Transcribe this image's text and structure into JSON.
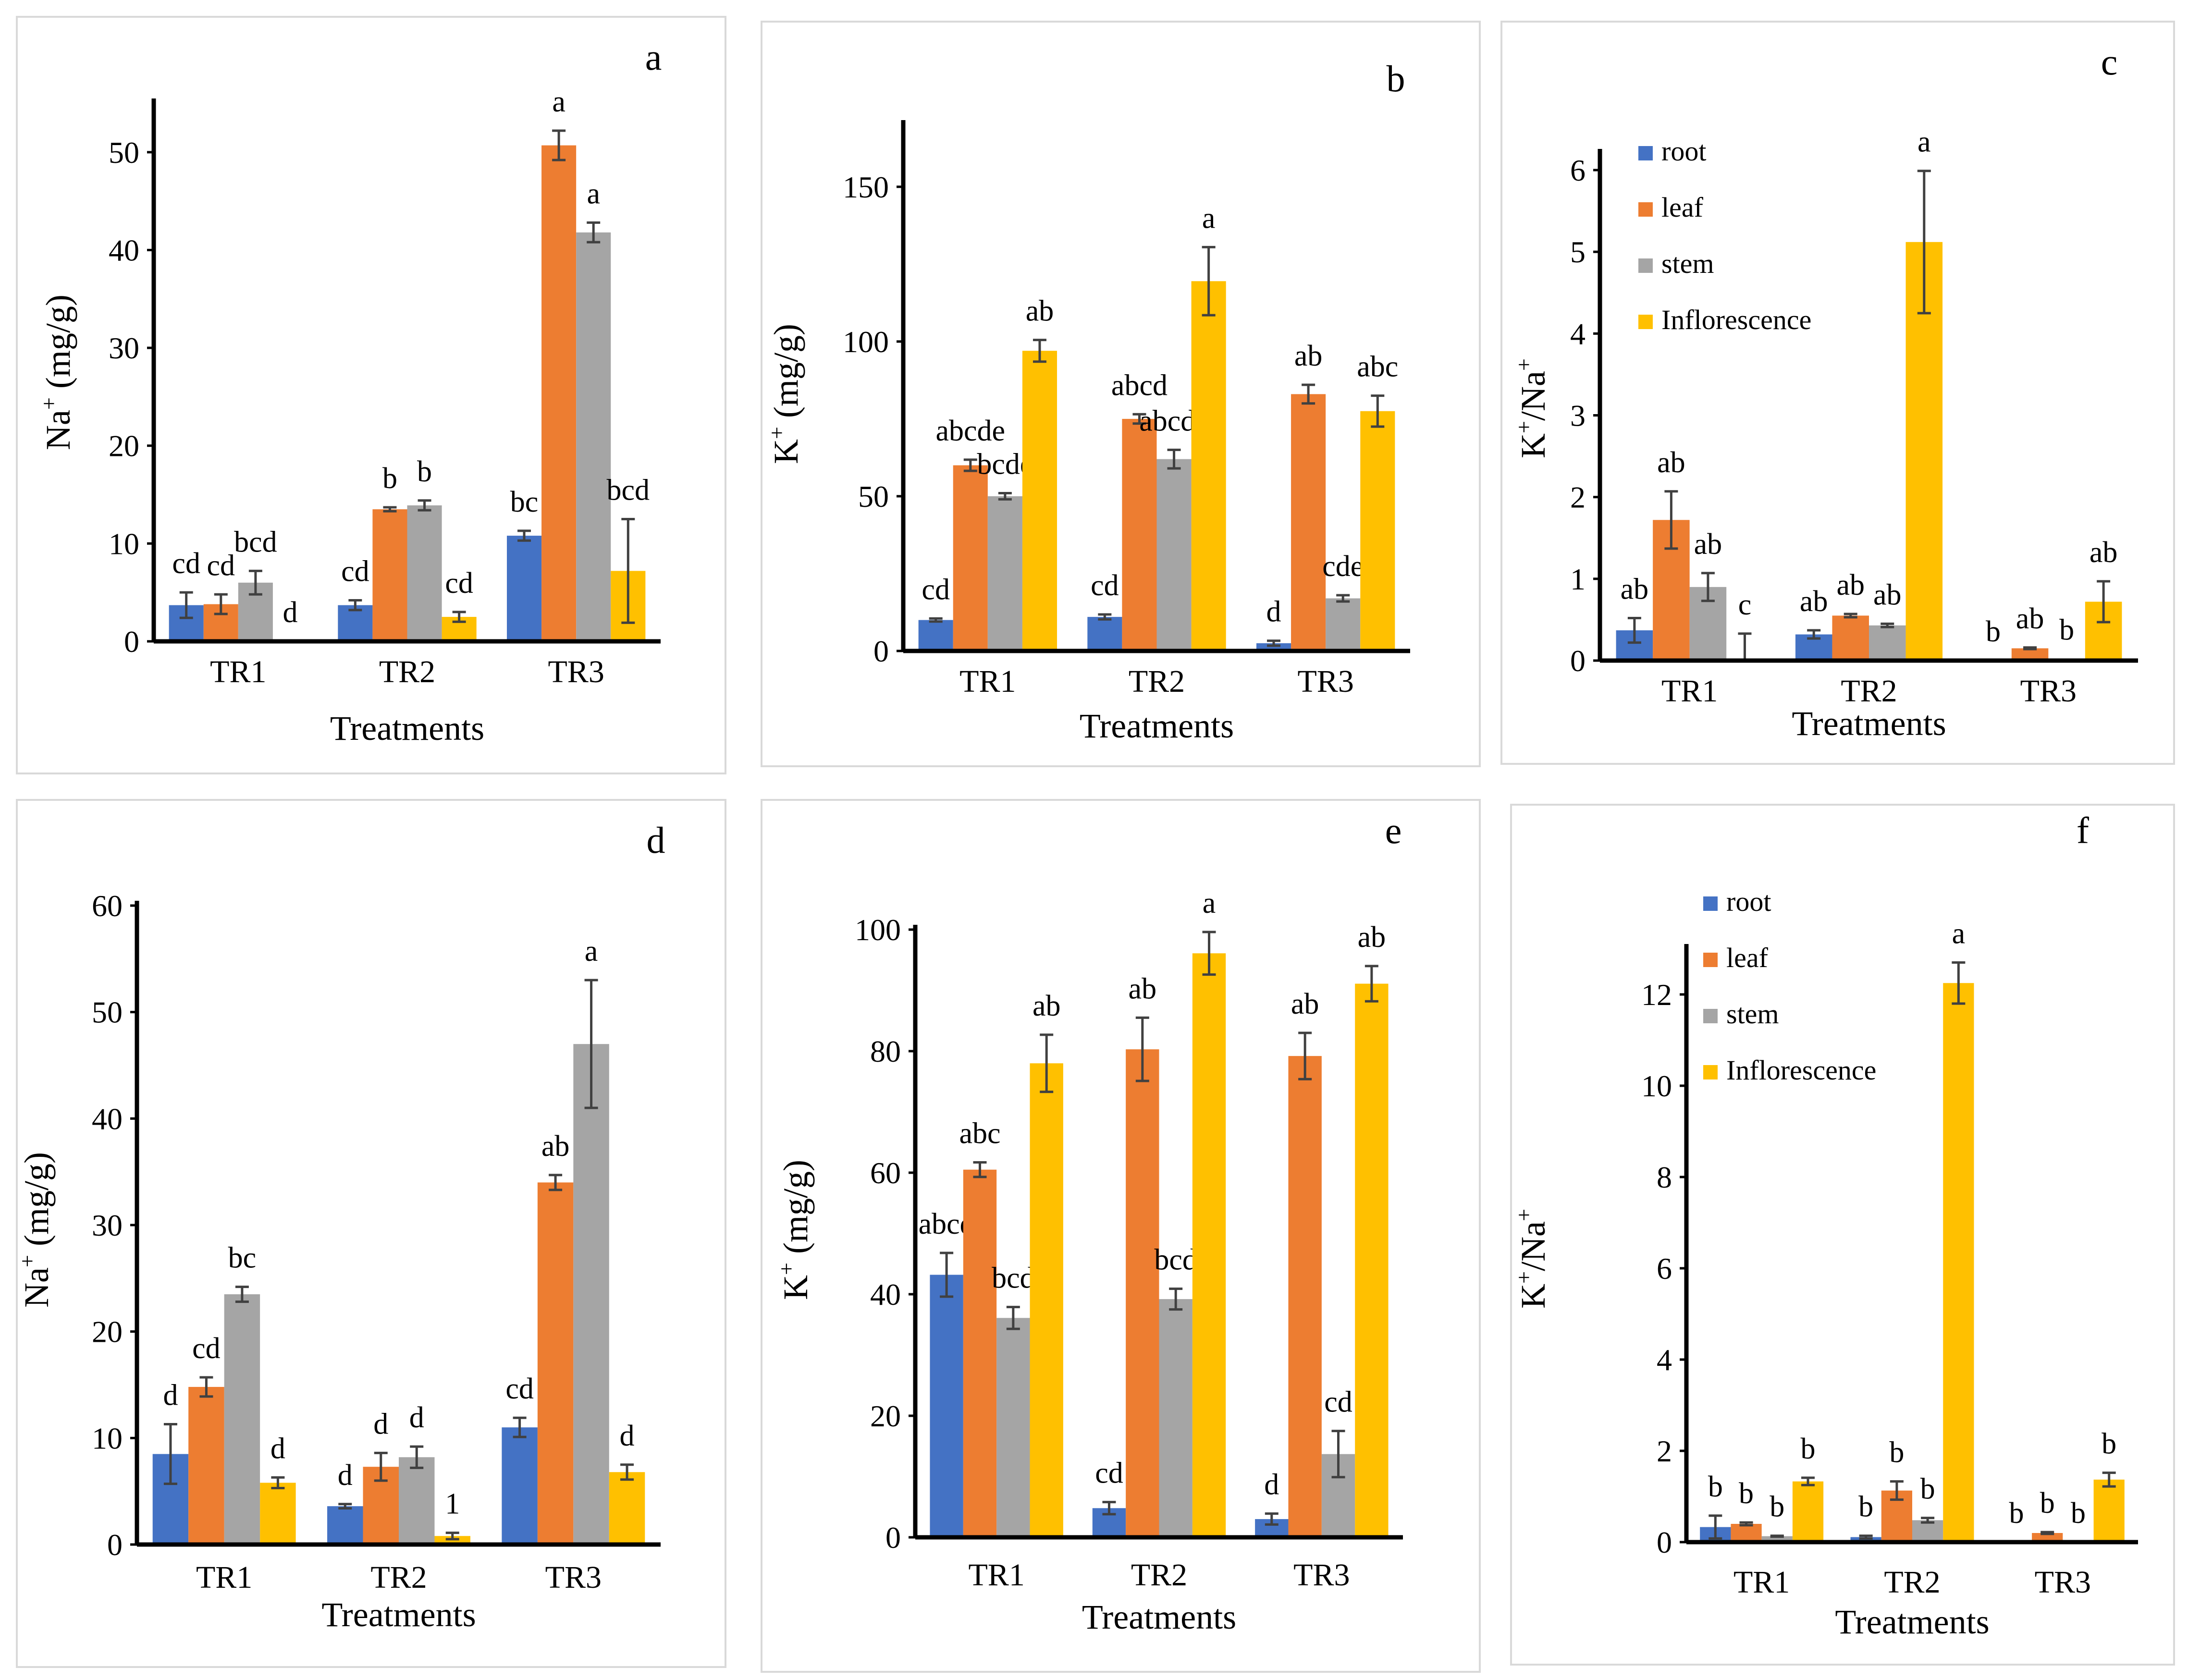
{
  "colors": {
    "root": "#4472C4",
    "leaf": "#ED7D31",
    "stem": "#A5A5A5",
    "inflorescence": "#FFC000",
    "axis": "#000000",
    "panel_border": "#D9D9D9",
    "error_bar": "#404040"
  },
  "chart_data": [
    {
      "panel": "a",
      "type": "bar",
      "ylabel": "Na+ (mg/g)",
      "ylabel_main": "Na",
      "ylabel_sup": "+",
      "ylabel_rest": " (mg/g)",
      "xlabel": "Treatments",
      "categories": [
        "TR1",
        "TR2",
        "TR3"
      ],
      "ylim": [
        0,
        55
      ],
      "yticks": [
        0,
        10,
        20,
        30,
        40,
        50
      ],
      "legend": false,
      "series": [
        {
          "name": "root",
          "values": [
            3.7,
            3.7,
            10.8
          ],
          "errors": [
            1.3,
            0.5,
            0.5
          ],
          "letters": [
            "cd",
            "cd",
            "bc"
          ]
        },
        {
          "name": "leaf",
          "values": [
            3.8,
            13.5,
            50.7
          ],
          "errors": [
            1.0,
            0.2,
            1.5
          ],
          "letters": [
            "cd",
            "b",
            "a"
          ]
        },
        {
          "name": "stem",
          "values": [
            6.0,
            13.9,
            41.8
          ],
          "errors": [
            1.2,
            0.5,
            1.0
          ],
          "letters": [
            "bcd",
            "b",
            "a"
          ]
        },
        {
          "name": "Inflorescence",
          "values": [
            0,
            2.5,
            7.2
          ],
          "errors": [
            0,
            0.5,
            5.3
          ],
          "letters": [
            "d",
            "cd",
            "bcd"
          ]
        }
      ]
    },
    {
      "panel": "b",
      "type": "bar",
      "ylabel": "K+ (mg/g)",
      "ylabel_main": "K",
      "ylabel_sup": "+",
      "ylabel_rest": " (mg/g)",
      "xlabel": "Treatments",
      "categories": [
        "TR1",
        "TR2",
        "TR3"
      ],
      "ylim": [
        0,
        170
      ],
      "yticks": [
        0,
        50,
        100,
        150
      ],
      "legend": false,
      "series": [
        {
          "name": "root",
          "values": [
            10,
            11,
            2.5
          ],
          "errors": [
            0.5,
            0.8,
            0.8
          ],
          "letters": [
            "cd",
            "cd",
            "d"
          ]
        },
        {
          "name": "leaf",
          "values": [
            60,
            75,
            83
          ],
          "errors": [
            1.8,
            1.5,
            3
          ],
          "letters": [
            "abcde",
            "abcd",
            "ab"
          ]
        },
        {
          "name": "stem",
          "values": [
            50,
            62,
            17
          ],
          "errors": [
            1.0,
            3,
            1
          ],
          "letters": [
            "bcde",
            "abcde",
            "cde"
          ]
        },
        {
          "name": "Inflorescence",
          "values": [
            97,
            119.5,
            77.5
          ],
          "errors": [
            3.5,
            11,
            5
          ],
          "letters": [
            "ab",
            "a",
            "abc"
          ]
        }
      ]
    },
    {
      "panel": "c",
      "type": "bar",
      "ylabel": "K+/Na+",
      "ylabel_main": "K",
      "ylabel_sup": "+",
      "ylabel_rest": "/Na",
      "ylabel_sup2": "+",
      "xlabel": "Treatments",
      "categories": [
        "TR1",
        "TR2",
        "TR3"
      ],
      "ylim": [
        0,
        6.2
      ],
      "yticks": [
        0,
        1,
        2,
        3,
        4,
        5,
        6
      ],
      "legend": true,
      "series": [
        {
          "name": "root",
          "values": [
            0.37,
            0.32,
            0
          ],
          "errors": [
            0.15,
            0.05,
            0
          ],
          "letters": [
            "ab",
            "ab",
            "b"
          ]
        },
        {
          "name": "leaf",
          "values": [
            1.72,
            0.55,
            0.15
          ],
          "errors": [
            0.35,
            0.02,
            0.01
          ],
          "letters": [
            "ab",
            "ab",
            "ab"
          ]
        },
        {
          "name": "stem",
          "values": [
            0.9,
            0.43,
            0.02
          ],
          "errors": [
            0.17,
            0.02,
            0
          ],
          "letters": [
            "ab",
            "ab",
            "b"
          ]
        },
        {
          "name": "Inflorescence",
          "values": [
            0,
            5.12,
            0.72
          ],
          "errors": [
            0.33,
            0.87,
            0.25
          ],
          "letters": [
            "c",
            "a",
            "ab"
          ]
        }
      ]
    },
    {
      "panel": "d",
      "type": "bar",
      "ylabel": "Na+ (mg/g)",
      "ylabel_main": "Na",
      "ylabel_sup": "+",
      "ylabel_rest": " (mg/g)",
      "xlabel": "Treatments",
      "categories": [
        "TR1",
        "TR2",
        "TR3"
      ],
      "ylim": [
        0,
        60
      ],
      "yticks": [
        0,
        10,
        20,
        30,
        40,
        50,
        60
      ],
      "legend": false,
      "series": [
        {
          "name": "root",
          "values": [
            8.5,
            3.6,
            11
          ],
          "errors": [
            2.8,
            0.2,
            0.9
          ],
          "letters": [
            "d",
            "d",
            "cd"
          ]
        },
        {
          "name": "leaf",
          "values": [
            14.8,
            7.3,
            34
          ],
          "errors": [
            0.9,
            1.3,
            0.7
          ],
          "letters": [
            "cd",
            "d",
            "ab"
          ]
        },
        {
          "name": "stem",
          "values": [
            23.5,
            8.2,
            47
          ],
          "errors": [
            0.7,
            1.0,
            6
          ],
          "letters": [
            "bc",
            "d",
            "a"
          ]
        },
        {
          "name": "Inflorescence",
          "values": [
            5.8,
            0.8,
            6.8
          ],
          "errors": [
            0.5,
            0.3,
            0.7
          ],
          "letters": [
            "d",
            "1",
            "d"
          ]
        }
      ]
    },
    {
      "panel": "e",
      "type": "bar",
      "ylabel": "K+ (mg/g)",
      "ylabel_main": "K",
      "ylabel_sup": "+",
      "ylabel_rest": " (mg/g)",
      "xlabel": "Treatments",
      "categories": [
        "TR1",
        "TR2",
        "TR3"
      ],
      "ylim": [
        0,
        100
      ],
      "yticks": [
        0,
        20,
        40,
        60,
        80,
        100
      ],
      "legend": false,
      "series": [
        {
          "name": "root",
          "values": [
            43.2,
            4.8,
            3
          ],
          "errors": [
            3.6,
            1.0,
            0.9
          ],
          "letters": [
            "abcd",
            "cd",
            "d"
          ]
        },
        {
          "name": "leaf",
          "values": [
            60.5,
            80.3,
            79.2
          ],
          "errors": [
            1.2,
            5.2,
            3.8
          ],
          "letters": [
            "abc",
            "ab",
            "ab"
          ]
        },
        {
          "name": "stem",
          "values": [
            36.1,
            39.2,
            13.7
          ],
          "errors": [
            1.8,
            1.7,
            3.8
          ],
          "letters": [
            "bcd",
            "bcd",
            "cd"
          ]
        },
        {
          "name": "Inflorescence",
          "values": [
            78,
            96.1,
            91.1
          ],
          "errors": [
            4.7,
            3.5,
            2.9
          ],
          "letters": [
            "ab",
            "a",
            "ab"
          ]
        }
      ]
    },
    {
      "panel": "f",
      "type": "bar",
      "ylabel": "K+/Na+",
      "ylabel_main": "K",
      "ylabel_sup": "+",
      "ylabel_rest": "/Na",
      "ylabel_sup2": "+",
      "xlabel": "Treatments",
      "categories": [
        "TR1",
        "TR2",
        "TR3"
      ],
      "ylim": [
        0,
        13
      ],
      "yticks": [
        0,
        2,
        4,
        6,
        8,
        10,
        12
      ],
      "legend": true,
      "series": [
        {
          "name": "root",
          "values": [
            0.33,
            0.11,
            0
          ],
          "errors": [
            0.25,
            0.03,
            0
          ],
          "letters": [
            "b",
            "b",
            "b"
          ]
        },
        {
          "name": "leaf",
          "values": [
            0.4,
            1.13,
            0.2
          ],
          "errors": [
            0.03,
            0.2,
            0.02
          ],
          "letters": [
            "b",
            "b",
            "b"
          ]
        },
        {
          "name": "stem",
          "values": [
            0.13,
            0.48,
            0
          ],
          "errors": [
            0.01,
            0.05,
            0
          ],
          "letters": [
            "b",
            "b",
            "b"
          ]
        },
        {
          "name": "Inflorescence",
          "values": [
            1.33,
            12.25,
            1.37
          ],
          "errors": [
            0.08,
            0.45,
            0.15
          ],
          "letters": [
            "b",
            "a",
            "b"
          ]
        }
      ]
    }
  ]
}
